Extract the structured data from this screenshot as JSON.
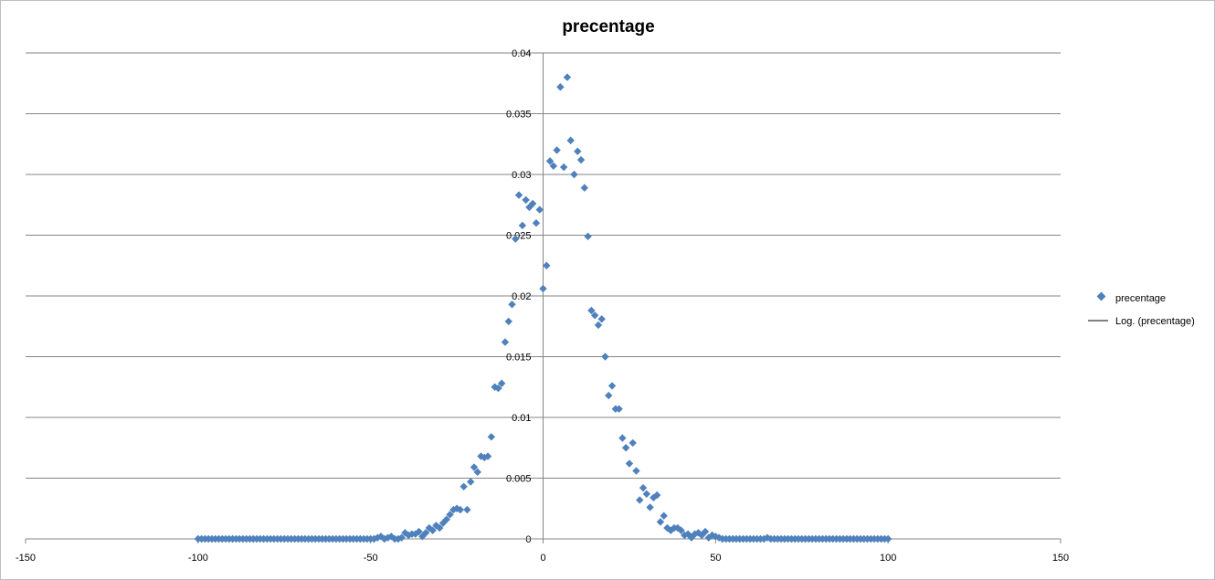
{
  "chart_data": {
    "type": "scatter",
    "title": "precentage",
    "xlabel": "",
    "ylabel": "",
    "xlim": [
      -150,
      150
    ],
    "ylim": [
      0,
      0.04
    ],
    "xticks": [
      "-150",
      "-100",
      "-50",
      "0",
      "50",
      "100",
      "150"
    ],
    "xtick_values": [
      -150,
      -100,
      -50,
      0,
      50,
      100,
      150
    ],
    "yticks": [
      "0",
      "0.005",
      "0.01",
      "0.015",
      "0.02",
      "0.025",
      "0.03",
      "0.035",
      "0.04"
    ],
    "ytick_values": [
      0,
      0.005,
      0.01,
      0.015,
      0.02,
      0.025,
      0.03,
      0.035,
      0.04
    ],
    "grid": "horizontal",
    "legend_position": "right",
    "legend": [
      {
        "label": "precentage",
        "marker": "diamond"
      },
      {
        "label": "Log. (precentage)",
        "marker": "line"
      }
    ],
    "colors": {
      "series": "#4f81bd",
      "gridline": "#868686",
      "trendline": "#000000"
    },
    "series": [
      {
        "name": "precentage",
        "points": [
          [
            -100,
            0
          ],
          [
            -99,
            0
          ],
          [
            -98,
            0
          ],
          [
            -97,
            0
          ],
          [
            -96,
            0
          ],
          [
            -95,
            0
          ],
          [
            -94,
            0
          ],
          [
            -93,
            0
          ],
          [
            -92,
            0
          ],
          [
            -91,
            0
          ],
          [
            -90,
            0
          ],
          [
            -89,
            0
          ],
          [
            -88,
            0
          ],
          [
            -87,
            0
          ],
          [
            -86,
            0
          ],
          [
            -85,
            0
          ],
          [
            -84,
            0
          ],
          [
            -83,
            0
          ],
          [
            -82,
            0
          ],
          [
            -81,
            0
          ],
          [
            -80,
            0
          ],
          [
            -79,
            0
          ],
          [
            -78,
            0
          ],
          [
            -77,
            0
          ],
          [
            -76,
            0
          ],
          [
            -75,
            0
          ],
          [
            -74,
            0
          ],
          [
            -73,
            0
          ],
          [
            -72,
            0
          ],
          [
            -71,
            0
          ],
          [
            -70,
            0
          ],
          [
            -69,
            0
          ],
          [
            -68,
            0
          ],
          [
            -67,
            0
          ],
          [
            -66,
            0
          ],
          [
            -65,
            0
          ],
          [
            -64,
            0
          ],
          [
            -63,
            0
          ],
          [
            -62,
            0
          ],
          [
            -61,
            0
          ],
          [
            -60,
            0
          ],
          [
            -59,
            0
          ],
          [
            -58,
            0
          ],
          [
            -57,
            0
          ],
          [
            -56,
            0
          ],
          [
            -55,
            0
          ],
          [
            -54,
            0
          ],
          [
            -53,
            0
          ],
          [
            -52,
            0
          ],
          [
            -51,
            0
          ],
          [
            -50,
            0
          ],
          [
            -49,
            0
          ],
          [
            -48,
            0.0001
          ],
          [
            -47,
            0.0002
          ],
          [
            -46,
            0
          ],
          [
            -45,
            0.0001
          ],
          [
            -44,
            0.0002
          ],
          [
            -43,
            0
          ],
          [
            -42,
            0
          ],
          [
            -41,
            0.0001
          ],
          [
            -40,
            0.0005
          ],
          [
            -39,
            0.0003
          ],
          [
            -38,
            0.0004
          ],
          [
            -37,
            0.0004
          ],
          [
            -36,
            0.0006
          ],
          [
            -35,
            0.0002
          ],
          [
            -34,
            0.0005
          ],
          [
            -33,
            0.0009
          ],
          [
            -32,
            0.0007
          ],
          [
            -31,
            0.0011
          ],
          [
            -30,
            0.0009
          ],
          [
            -29,
            0.0013
          ],
          [
            -28,
            0.0016
          ],
          [
            -27,
            0.002
          ],
          [
            -26,
            0.0024
          ],
          [
            -25,
            0.0025
          ],
          [
            -24,
            0.0024
          ],
          [
            -23,
            0.0043
          ],
          [
            -22,
            0.0024
          ],
          [
            -21,
            0.0047
          ],
          [
            -20,
            0.0059
          ],
          [
            -19,
            0.0055
          ],
          [
            -18,
            0.0068
          ],
          [
            -17,
            0.0067
          ],
          [
            -16,
            0.0068
          ],
          [
            -15,
            0.0084
          ],
          [
            -14,
            0.0125
          ],
          [
            -13,
            0.0124
          ],
          [
            -12,
            0.0128
          ],
          [
            -11,
            0.0162
          ],
          [
            -10,
            0.0179
          ],
          [
            -9,
            0.0193
          ],
          [
            -8,
            0.0247
          ],
          [
            -7,
            0.0283
          ],
          [
            -6,
            0.0258
          ],
          [
            -5,
            0.0279
          ],
          [
            -4,
            0.0273
          ],
          [
            -3,
            0.0276
          ],
          [
            -2,
            0.026
          ],
          [
            -1,
            0.0271
          ],
          [
            0,
            0.0206
          ],
          [
            1,
            0.0225
          ],
          [
            2,
            0.0311
          ],
          [
            3,
            0.0307
          ],
          [
            4,
            0.032
          ],
          [
            5,
            0.0372
          ],
          [
            6,
            0.0306
          ],
          [
            7,
            0.038
          ],
          [
            8,
            0.0328
          ],
          [
            9,
            0.03
          ],
          [
            10,
            0.0319
          ],
          [
            11,
            0.0312
          ],
          [
            12,
            0.0289
          ],
          [
            13,
            0.0249
          ],
          [
            14,
            0.0188
          ],
          [
            15,
            0.0184
          ],
          [
            16,
            0.0176
          ],
          [
            17,
            0.0181
          ],
          [
            18,
            0.015
          ],
          [
            19,
            0.0118
          ],
          [
            20,
            0.0126
          ],
          [
            21,
            0.0107
          ],
          [
            22,
            0.0107
          ],
          [
            23,
            0.0083
          ],
          [
            24,
            0.0075
          ],
          [
            25,
            0.0062
          ],
          [
            26,
            0.0079
          ],
          [
            27,
            0.0056
          ],
          [
            28,
            0.0032
          ],
          [
            29,
            0.0042
          ],
          [
            30,
            0.0037
          ],
          [
            31,
            0.0026
          ],
          [
            32,
            0.0034
          ],
          [
            33,
            0.0036
          ],
          [
            34,
            0.0014
          ],
          [
            35,
            0.0019
          ],
          [
            36,
            0.0009
          ],
          [
            37,
            0.0007
          ],
          [
            38,
            0.0009
          ],
          [
            39,
            0.0009
          ],
          [
            40,
            0.0007
          ],
          [
            41,
            0.0003
          ],
          [
            42,
            0.0004
          ],
          [
            43,
            0.0001
          ],
          [
            44,
            0.0004
          ],
          [
            45,
            0.0005
          ],
          [
            46,
            0.0003
          ],
          [
            47,
            0.0006
          ],
          [
            48,
            0.0001
          ],
          [
            49,
            0.0003
          ],
          [
            50,
            0.0002
          ],
          [
            51,
            0.0001
          ],
          [
            52,
            0
          ],
          [
            53,
            0
          ],
          [
            54,
            0
          ],
          [
            55,
            0
          ],
          [
            56,
            0
          ],
          [
            57,
            0
          ],
          [
            58,
            0
          ],
          [
            59,
            0
          ],
          [
            60,
            0
          ],
          [
            61,
            0
          ],
          [
            62,
            0
          ],
          [
            63,
            0
          ],
          [
            64,
            0
          ],
          [
            65,
            0.0001
          ],
          [
            66,
            0
          ],
          [
            67,
            0
          ],
          [
            68,
            0
          ],
          [
            69,
            0
          ],
          [
            70,
            0
          ],
          [
            71,
            0
          ],
          [
            72,
            0
          ],
          [
            73,
            0
          ],
          [
            74,
            0
          ],
          [
            75,
            0
          ],
          [
            76,
            0
          ],
          [
            77,
            0
          ],
          [
            78,
            0
          ],
          [
            79,
            0
          ],
          [
            80,
            0
          ],
          [
            81,
            0
          ],
          [
            82,
            0
          ],
          [
            83,
            0
          ],
          [
            84,
            0
          ],
          [
            85,
            0
          ],
          [
            86,
            0
          ],
          [
            87,
            0
          ],
          [
            88,
            0
          ],
          [
            89,
            0
          ],
          [
            90,
            0
          ],
          [
            91,
            0
          ],
          [
            92,
            0
          ],
          [
            93,
            0
          ],
          [
            94,
            0
          ],
          [
            95,
            0
          ],
          [
            96,
            0
          ],
          [
            97,
            0
          ],
          [
            98,
            0
          ],
          [
            99,
            0
          ],
          [
            100,
            0
          ]
        ]
      }
    ]
  }
}
